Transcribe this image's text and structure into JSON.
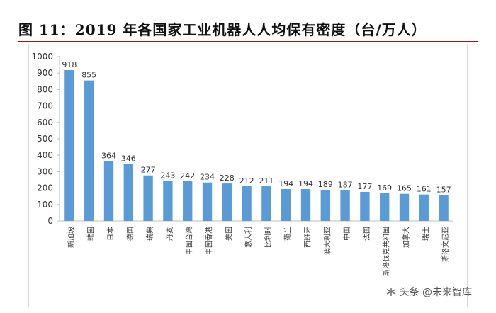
{
  "title": "图 11：2019 年各国家工业机器人人均保有密度（台/万人）",
  "watermark": {
    "text": "头条 @未来智库",
    "icon": "asterisk-icon"
  },
  "colors": {
    "bar": "#5b9bd5",
    "title_rule": "#8b1a1a",
    "axis": "#bfbfbf"
  },
  "chart_data": {
    "type": "bar",
    "title": "图 11：2019 年各国家工业机器人人均保有密度（台/万人）",
    "xlabel": "",
    "ylabel": "",
    "ylim": [
      0,
      1000
    ],
    "yticks": [
      0,
      100,
      200,
      300,
      400,
      500,
      600,
      700,
      800,
      900,
      1000
    ],
    "grid": false,
    "legend": "none",
    "categories": [
      "新加坡",
      "韩国",
      "日本",
      "德国",
      "瑞典",
      "丹麦",
      "中国台湾",
      "中国香港",
      "美国",
      "意大利",
      "比利时",
      "荷兰",
      "西班牙",
      "澳大利亚",
      "中国",
      "法国",
      "斯洛伐克共和国",
      "加拿大",
      "瑞士",
      "斯洛文尼亚"
    ],
    "values": [
      918,
      855,
      364,
      346,
      277,
      243,
      242,
      234,
      228,
      212,
      211,
      194,
      194,
      189,
      187,
      177,
      169,
      165,
      161,
      157
    ]
  }
}
